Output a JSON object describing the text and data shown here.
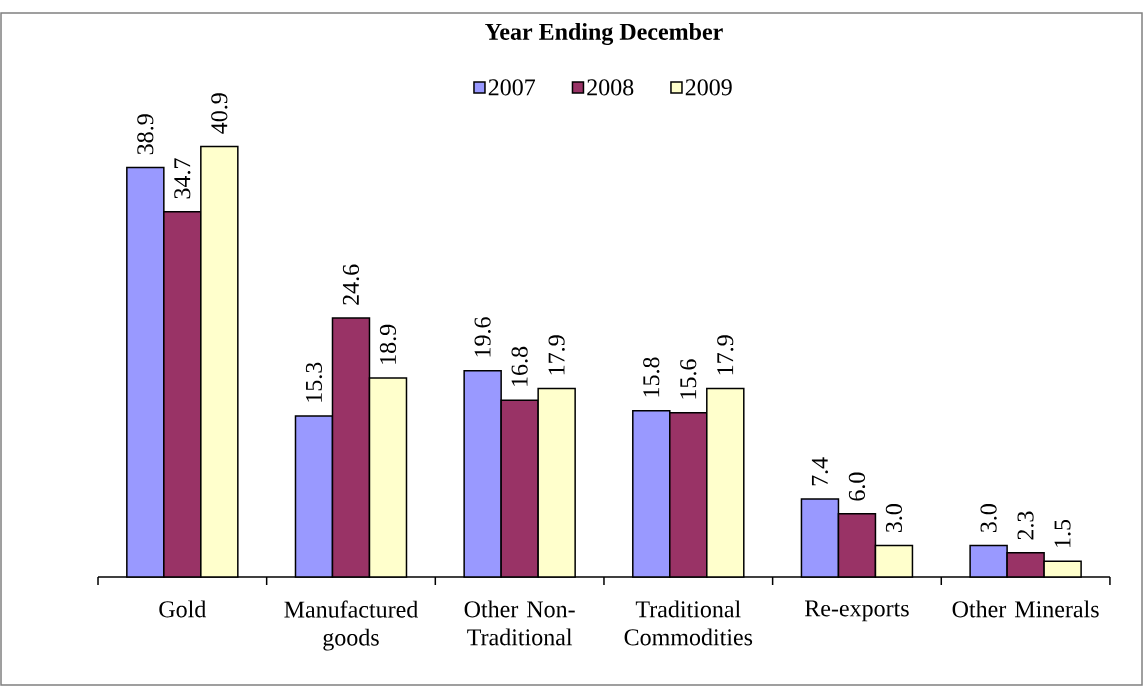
{
  "chart_data": {
    "type": "bar",
    "title": "Year Ending December",
    "categories": [
      "Gold",
      "Manufactured goods",
      "Other Non-Traditional",
      "Traditional Commodities",
      "Re-exports",
      "Other Minerals"
    ],
    "series": [
      {
        "name": "2007",
        "color": "#9999ff",
        "values": [
          38.9,
          15.3,
          19.6,
          15.8,
          7.4,
          3.0
        ],
        "value_labels": [
          "38.9",
          "15.3",
          "19.6",
          "15.8",
          "7.4",
          "3.0"
        ]
      },
      {
        "name": "2008",
        "color": "#993366",
        "values": [
          34.7,
          24.6,
          16.8,
          15.6,
          6.0,
          2.3
        ],
        "value_labels": [
          "34.7",
          "24.6",
          "16.8",
          "15.6",
          "6.0",
          "2.3"
        ]
      },
      {
        "name": "2009",
        "color": "#ffffcc",
        "values": [
          40.9,
          18.9,
          17.9,
          17.9,
          3.0,
          1.5
        ],
        "value_labels": [
          "40.9",
          "18.9",
          "17.9",
          "17.9",
          "3.0",
          "1.5"
        ]
      }
    ],
    "legend": "top"
  }
}
